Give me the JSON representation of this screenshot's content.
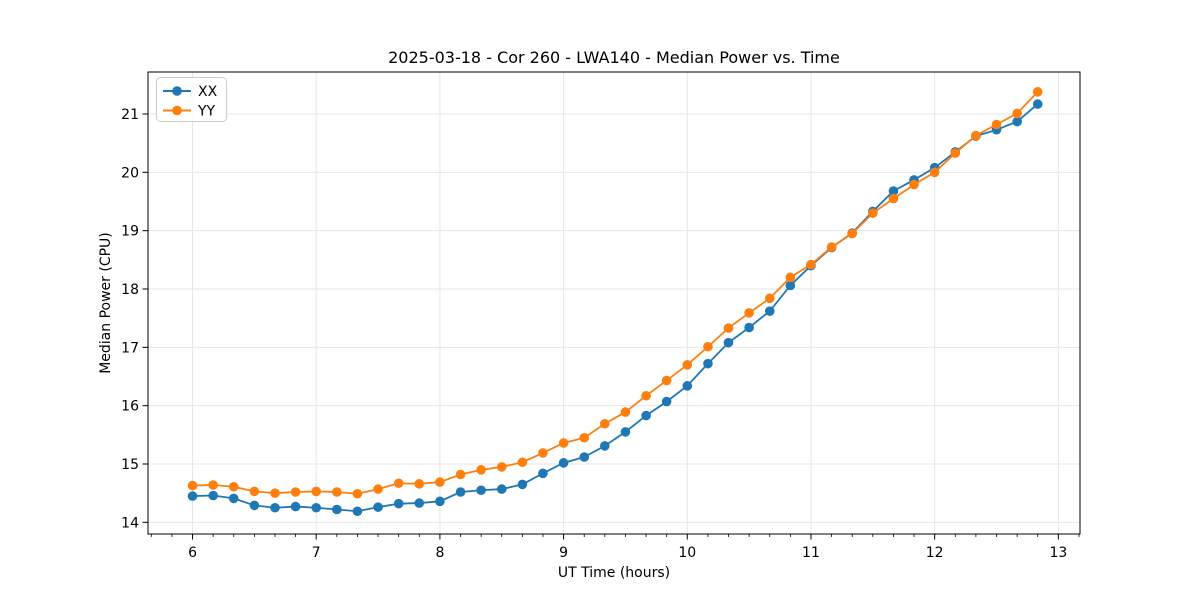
{
  "figure": {
    "title": "2025-03-18 - Cor 260 - LWA140 - Median Power vs. Time",
    "xlabel": "UT Time (hours)",
    "ylabel": "Median Power (CPU)"
  },
  "legend": {
    "position": "upper left",
    "items": [
      {
        "label": "XX",
        "color": "#1f77b4"
      },
      {
        "label": "YY",
        "color": "#ff7f0e"
      }
    ]
  },
  "chart_data": {
    "type": "line",
    "title": "2025-03-18 - Cor 260 - LWA140 - Median Power vs. Time",
    "xlabel": "UT Time (hours)",
    "ylabel": "Median Power (CPU)",
    "marker": "o",
    "grid": true,
    "legend_position": "upper left",
    "xlim": [
      5.64,
      13.175
    ],
    "ylim": [
      13.8,
      21.72
    ],
    "x_ticks": [
      6,
      7,
      8,
      9,
      10,
      11,
      12,
      13
    ],
    "y_ticks": [
      14,
      15,
      16,
      17,
      18,
      19,
      20,
      21
    ],
    "x_minor_tick_step": 0.166667,
    "x": [
      6.0,
      6.167,
      6.333,
      6.5,
      6.667,
      6.833,
      7.0,
      7.167,
      7.333,
      7.5,
      7.667,
      7.833,
      8.0,
      8.167,
      8.333,
      8.5,
      8.667,
      8.833,
      9.0,
      9.167,
      9.333,
      9.5,
      9.667,
      9.833,
      10.0,
      10.167,
      10.333,
      10.5,
      10.667,
      10.833,
      11.0,
      11.167,
      11.333,
      11.5,
      11.667,
      11.833,
      12.0,
      12.167,
      12.333,
      12.5,
      12.667,
      12.833
    ],
    "series": [
      {
        "name": "XX",
        "color": "#1f77b4",
        "values": [
          14.45,
          14.46,
          14.41,
          14.29,
          14.25,
          14.27,
          14.25,
          14.22,
          14.19,
          14.26,
          14.32,
          14.33,
          14.36,
          14.52,
          14.55,
          14.57,
          14.65,
          14.84,
          15.02,
          15.12,
          15.31,
          15.55,
          15.83,
          16.07,
          16.34,
          16.72,
          17.08,
          17.34,
          17.62,
          18.06,
          18.4,
          18.71,
          18.96,
          19.33,
          19.68,
          19.87,
          20.08,
          20.35,
          20.62,
          20.73,
          20.87,
          21.17
        ]
      },
      {
        "name": "YY",
        "color": "#ff7f0e",
        "values": [
          14.63,
          14.64,
          14.61,
          14.53,
          14.5,
          14.52,
          14.53,
          14.52,
          14.49,
          14.57,
          14.67,
          14.66,
          14.69,
          14.82,
          14.9,
          14.95,
          15.03,
          15.19,
          15.36,
          15.45,
          15.69,
          15.89,
          16.17,
          16.43,
          16.7,
          17.01,
          17.33,
          17.59,
          17.84,
          18.2,
          18.42,
          18.72,
          18.95,
          19.3,
          19.55,
          19.79,
          20.0,
          20.33,
          20.63,
          20.82,
          21.01,
          21.38
        ]
      }
    ],
    "colors": {
      "grid": "#e6e6e6",
      "spine": "#000000",
      "background": "#ffffff"
    }
  }
}
